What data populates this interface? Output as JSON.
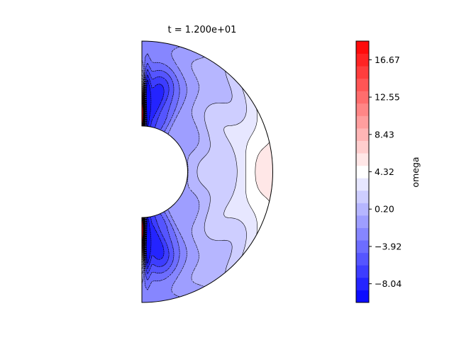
{
  "chart_data": {
    "type": "heatmap",
    "title": "t = 1.200e+01",
    "variable": "omega",
    "domain": "meridional-half-annulus",
    "inner_radius": 0.35,
    "outer_radius": 1.0,
    "colormap": "bwr",
    "vmin": -10.1,
    "vmax": 18.73,
    "levels": 21,
    "colorbar": {
      "label": "omega",
      "ticks": [
        -8.04,
        -3.92,
        0.2,
        4.32,
        8.43,
        12.55,
        16.67
      ],
      "tick_labels": [
        "−8.04",
        "−3.92",
        "0.20",
        "4.32",
        "8.43",
        "12.55",
        "16.67"
      ]
    }
  }
}
